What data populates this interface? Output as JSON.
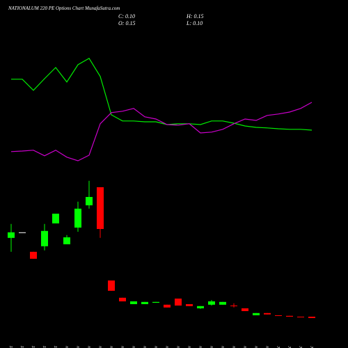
{
  "chart_data": {
    "type": "candlestick",
    "title": "NATIONALUM 220 PE Options Chart MunafaSutra.com",
    "info": [
      "C: 0.10",
      "H: 0.15",
      "O: 0.15",
      "L: 0.10"
    ],
    "categories": [
      "27 Oct",
      "28 Oct",
      "29 Oct",
      "30 Oct",
      "31 Oct",
      "03 Nov",
      "04 Nov",
      "06 Nov",
      "07 Nov",
      "10 Nov",
      "11 Nov",
      "12 Nov",
      "13 Nov",
      "14 Nov",
      "17 Nov",
      "18 Nov",
      "19 Nov",
      "20 Nov",
      "21 Nov",
      "24 Nov",
      "25 Nov",
      "26 Nov",
      "27 Nov",
      "28 Nov",
      "01 Dec",
      "02 Dec",
      "03 Dec",
      "04 Dec"
    ],
    "open": [
      2.98,
      3.18,
      2.48,
      2.68,
      3.5,
      2.75,
      3.35,
      4.15,
      4.8,
      1.45,
      0.83,
      0.6,
      0.6,
      0.65,
      0.58,
      0.8,
      0.6,
      0.45,
      0.58,
      0.58,
      0.55,
      0.45,
      0.2,
      0.28,
      0.2,
      0.18,
      0.15,
      0.15
    ],
    "high": [
      3.48,
      3.18,
      2.48,
      3.48,
      3.85,
      3.08,
      4.28,
      5.03,
      4.8,
      1.45,
      0.83,
      0.7,
      0.68,
      0.68,
      0.58,
      0.8,
      0.6,
      0.53,
      0.75,
      0.68,
      0.63,
      0.45,
      0.28,
      0.28,
      0.2,
      0.18,
      0.15,
      0.15
    ],
    "low": [
      2.48,
      3.18,
      2.23,
      2.53,
      3.5,
      2.75,
      3.2,
      4.03,
      2.98,
      1.08,
      0.7,
      0.6,
      0.6,
      0.65,
      0.48,
      0.55,
      0.53,
      0.43,
      0.55,
      0.58,
      0.48,
      0.35,
      0.2,
      0.23,
      0.18,
      0.15,
      0.13,
      0.1
    ],
    "close": [
      3.18,
      3.18,
      2.23,
      3.23,
      3.85,
      3.0,
      4.03,
      4.45,
      3.3,
      1.08,
      0.7,
      0.7,
      0.68,
      0.68,
      0.48,
      0.55,
      0.53,
      0.53,
      0.7,
      0.68,
      0.53,
      0.35,
      0.28,
      0.23,
      0.18,
      0.15,
      0.13,
      0.1
    ],
    "up_color": "#00ff00",
    "down_color": "#ff0000",
    "flat_color": "#ffffff",
    "series": [
      {
        "color": "#00ee00",
        "values": [
          8.68,
          8.68,
          8.28,
          8.7,
          9.1,
          8.58,
          9.2,
          9.43,
          8.78,
          7.4,
          7.18,
          7.18,
          7.15,
          7.15,
          7.05,
          7.08,
          7.08,
          7.05,
          7.18,
          7.18,
          7.1,
          7.0,
          6.95,
          6.93,
          6.9,
          6.88,
          6.88,
          6.85
        ]
      },
      {
        "color": "#cc00cc",
        "values": [
          6.08,
          6.1,
          6.13,
          5.93,
          6.13,
          5.88,
          5.75,
          5.95,
          7.08,
          7.48,
          7.53,
          7.63,
          7.33,
          7.25,
          7.05,
          7.03,
          7.08,
          6.75,
          6.78,
          6.88,
          7.08,
          7.25,
          7.2,
          7.38,
          7.43,
          7.5,
          7.63,
          7.85
        ]
      }
    ],
    "ylim": [
      0,
      11.5
    ]
  }
}
